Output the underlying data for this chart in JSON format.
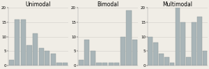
{
  "unimodal": {
    "title": "Unimodal",
    "values": [
      2,
      16,
      16,
      7,
      11,
      6,
      5,
      4,
      1,
      1
    ]
  },
  "bimodal": {
    "title": "Bimodal",
    "values": [
      2,
      9,
      5,
      1,
      1,
      1,
      1,
      10,
      19,
      9
    ]
  },
  "multimodal": {
    "title": "Multimodal",
    "values": [
      10,
      8,
      4,
      3,
      1,
      20,
      15,
      3,
      15,
      17,
      5
    ]
  },
  "bar_color": "#a9b5b8",
  "bar_edge_color": "#8a9496",
  "ylim": [
    0,
    20
  ],
  "yticks": [
    0,
    5,
    10,
    15,
    20
  ],
  "background_color": "#f0ede6",
  "title_fontsize": 5.5,
  "tick_fontsize": 4.0,
  "grid_color": "#d0cdc8",
  "fig_width": 3.0,
  "fig_height": 0.99,
  "dpi": 100
}
